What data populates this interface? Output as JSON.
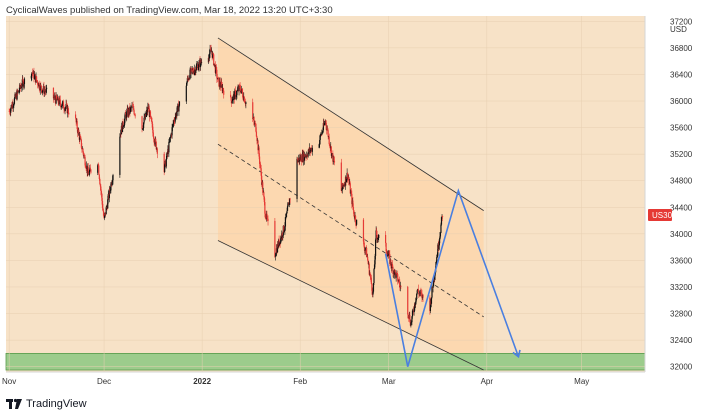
{
  "header": {
    "text": "CyclicalWaves published on TradingView.com, Mar 18, 2022 13:20 UTC+3:30"
  },
  "footer": {
    "brand": "TradingView"
  },
  "colors": {
    "background": "#f7e2c7",
    "channel_fill": "#fcd8b0",
    "support_band": "#9ccc8c",
    "candle_bull": "#111111",
    "candle_bear": "#e53935",
    "projection": "#4a7fe0",
    "price_tag": "#e53935"
  },
  "chart_data": {
    "type": "candlestick",
    "symbol": "US30",
    "currency": "USD",
    "x_ticks": [
      "Nov",
      "Dec",
      "2022",
      "Feb",
      "Mar",
      "Apr",
      "May"
    ],
    "y_ticks": [
      37200,
      36800,
      36400,
      36000,
      35600,
      35200,
      34800,
      34400,
      34000,
      33600,
      33200,
      32800,
      32400,
      32000
    ],
    "ylim": [
      31920,
      37280
    ],
    "last_price_label": "US30",
    "close_path": [
      [
        "2021-11-01",
        35850
      ],
      [
        "2021-11-05",
        36250
      ],
      [
        "2021-11-08",
        36450
      ],
      [
        "2021-11-11",
        36200
      ],
      [
        "2021-11-15",
        36050
      ],
      [
        "2021-11-19",
        35900
      ],
      [
        "2021-11-22",
        35700
      ],
      [
        "2021-11-26",
        34900
      ],
      [
        "2021-11-29",
        35100
      ],
      [
        "2021-12-01",
        34200
      ],
      [
        "2021-12-03",
        34700
      ],
      [
        "2021-12-06",
        35500
      ],
      [
        "2021-12-08",
        35800
      ],
      [
        "2021-12-10",
        35900
      ],
      [
        "2021-12-13",
        35600
      ],
      [
        "2021-12-15",
        35900
      ],
      [
        "2021-12-17",
        35400
      ],
      [
        "2021-12-20",
        34950
      ],
      [
        "2021-12-23",
        35700
      ],
      [
        "2021-12-28",
        36400
      ],
      [
        "2022-01-04",
        36750
      ],
      [
        "2022-01-06",
        36300
      ],
      [
        "2022-01-10",
        36000
      ],
      [
        "2022-01-13",
        36200
      ],
      [
        "2022-01-18",
        35600
      ],
      [
        "2022-01-21",
        34300
      ],
      [
        "2022-01-24",
        33700
      ],
      [
        "2022-01-27",
        34100
      ],
      [
        "2022-01-31",
        35100
      ],
      [
        "2022-02-03",
        35200
      ],
      [
        "2022-02-07",
        35400
      ],
      [
        "2022-02-09",
        35700
      ],
      [
        "2022-02-11",
        35200
      ],
      [
        "2022-02-14",
        34650
      ],
      [
        "2022-02-16",
        34900
      ],
      [
        "2022-02-18",
        34300
      ],
      [
        "2022-02-22",
        33700
      ],
      [
        "2022-02-24",
        33100
      ],
      [
        "2022-02-25",
        34000
      ],
      [
        "2022-02-28",
        33800
      ],
      [
        "2022-03-02",
        33500
      ],
      [
        "2022-03-04",
        33300
      ],
      [
        "2022-03-07",
        32850
      ],
      [
        "2022-03-08",
        32650
      ],
      [
        "2022-03-10",
        33150
      ],
      [
        "2022-03-14",
        32900
      ],
      [
        "2022-03-16",
        33600
      ],
      [
        "2022-03-18",
        34300
      ]
    ],
    "annotations": {
      "channel": {
        "upper": [
          [
            "2022-01-06",
            36950
          ],
          [
            "2022-03-31",
            34350
          ]
        ],
        "lower": [
          [
            "2022-01-06",
            33900
          ],
          [
            "2022-03-31",
            31950
          ]
        ],
        "mid": [
          [
            "2022-01-06",
            35350
          ],
          [
            "2022-03-31",
            32750
          ]
        ]
      },
      "support_zone": [
        31950,
        32200
      ],
      "projection": [
        [
          "2022-02-28",
          33700
        ],
        [
          "2022-03-07",
          32000
        ],
        [
          "2022-03-23",
          34650
        ],
        [
          "2022-04-11",
          32150
        ]
      ]
    }
  }
}
